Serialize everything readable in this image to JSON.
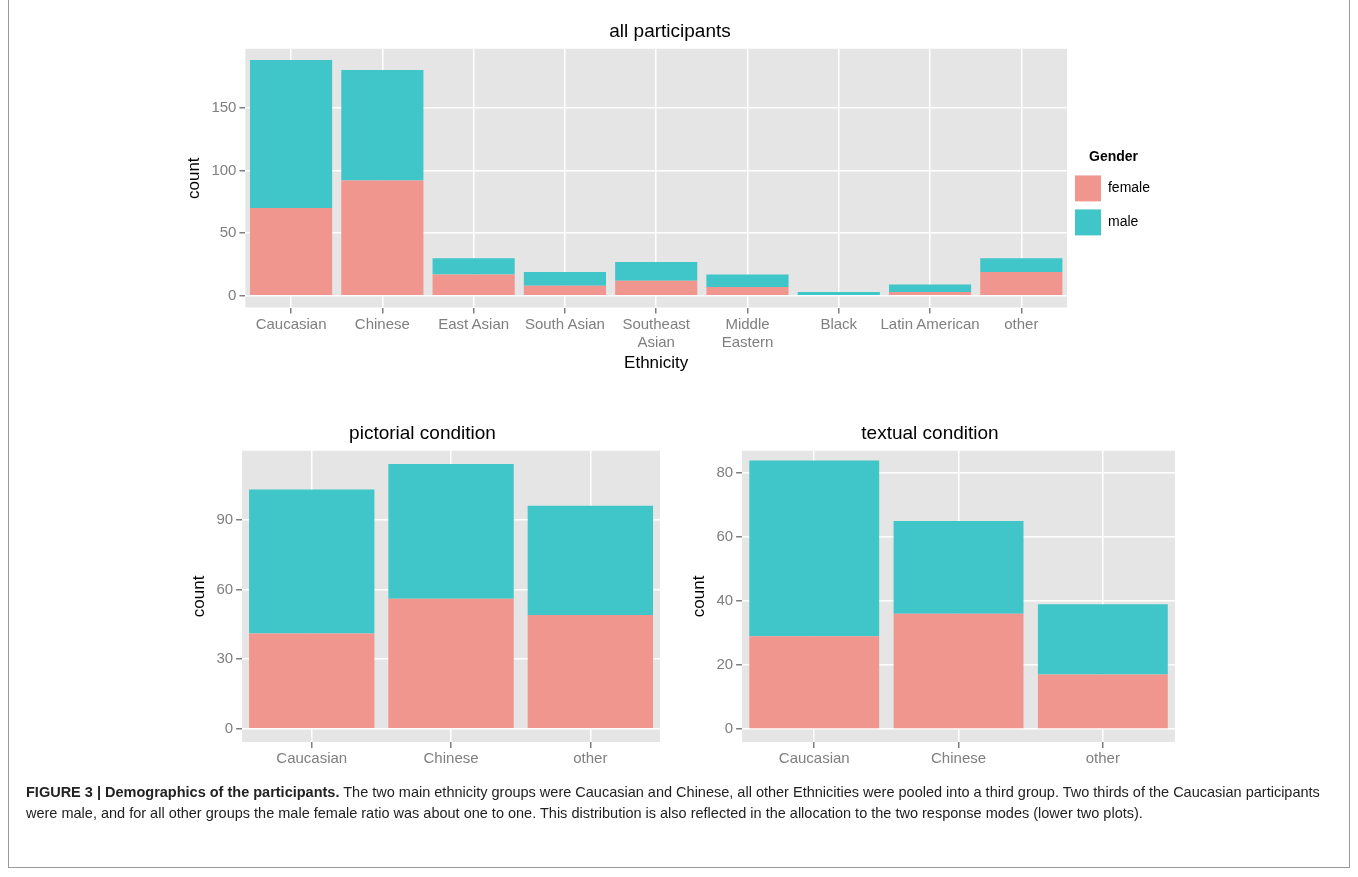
{
  "chart_data": [
    {
      "type": "bar",
      "title": "all participants",
      "xlabel": "Ethnicity",
      "ylabel": "count",
      "legend_title": "Gender",
      "legend": "right",
      "stacked": true,
      "grid": true,
      "categories": [
        "Caucasian",
        "Chinese",
        "East Asian",
        "South Asian",
        "Southeast\nAsian",
        "Middle\nEastern",
        "Black",
        "Latin American",
        "other"
      ],
      "series": [
        {
          "name": "female",
          "color": "#f1968f",
          "values": [
            70,
            92,
            17,
            8,
            12,
            7,
            0,
            3,
            19
          ]
        },
        {
          "name": "male",
          "color": "#40c5c9",
          "values": [
            118,
            88,
            13,
            11,
            15,
            10,
            3,
            6,
            11
          ]
        }
      ],
      "ylim": [
        -9.4,
        197
      ],
      "yticks": [
        0,
        50,
        100,
        150
      ]
    },
    {
      "type": "bar",
      "title": "pictorial condition",
      "ylabel": "count",
      "stacked": true,
      "grid": true,
      "categories": [
        "Caucasian",
        "Chinese",
        "other"
      ],
      "series": [
        {
          "color": "#f1968f",
          "values": [
            41,
            56,
            49
          ]
        },
        {
          "color": "#40c5c9",
          "values": [
            62,
            58,
            47
          ]
        }
      ],
      "ylim": [
        -5.7,
        119.7
      ],
      "yticks": [
        0,
        30,
        60,
        90
      ]
    },
    {
      "type": "bar",
      "title": "textual condition",
      "ylabel": "count",
      "stacked": true,
      "grid": true,
      "categories": [
        "Caucasian",
        "Chinese",
        "other"
      ],
      "series": [
        {
          "color": "#f1968f",
          "values": [
            29,
            36,
            17
          ]
        },
        {
          "color": "#40c5c9",
          "values": [
            55,
            29,
            22
          ]
        }
      ],
      "ylim": [
        -4.1,
        87
      ],
      "yticks": [
        0,
        20,
        40,
        60,
        80
      ]
    },
    {
      "type": "other",
      "title": "FIGURE 3 | Demographics of the participants.",
      "annotations": [
        "The two main ethnicity groups were Caucasian and Chinese, all other Ethnicities were pooled into a third group. Two thirds of the Caucasian participants were male, and for all other groups the male female ratio was about one to one. This distribution is also reflected in the allocation to the two response modes (lower two plots)."
      ]
    }
  ]
}
